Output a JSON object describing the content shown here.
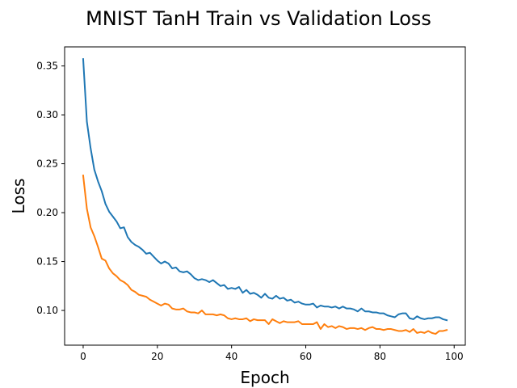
{
  "chart_data": {
    "type": "line",
    "title": "MNIST TanH Train vs Validation Loss",
    "xlabel": "Epoch",
    "ylabel": "Loss",
    "xlim": [
      -5,
      103
    ],
    "ylim": [
      0.0645,
      0.3695
    ],
    "xticks": [
      0,
      20,
      40,
      60,
      80,
      100
    ],
    "yticks": [
      0.1,
      0.15,
      0.2,
      0.25,
      0.3,
      0.35
    ],
    "ytick_labels": [
      "0.10",
      "0.15",
      "0.20",
      "0.25",
      "0.30",
      "0.35"
    ],
    "grid": false,
    "legend": null,
    "series": [
      {
        "color": "#1f77b4",
        "x": [
          0,
          1,
          2,
          3,
          4,
          5,
          6,
          7,
          8,
          9,
          10,
          11,
          12,
          13,
          14,
          15,
          16,
          17,
          18,
          19,
          20,
          21,
          22,
          23,
          24,
          25,
          26,
          27,
          28,
          29,
          30,
          31,
          32,
          33,
          34,
          35,
          36,
          37,
          38,
          39,
          40,
          41,
          42,
          43,
          44,
          45,
          46,
          47,
          48,
          49,
          50,
          51,
          52,
          53,
          54,
          55,
          56,
          57,
          58,
          59,
          60,
          61,
          62,
          63,
          64,
          65,
          66,
          67,
          68,
          69,
          70,
          71,
          72,
          73,
          74,
          75,
          76,
          77,
          78,
          79,
          80,
          81,
          82,
          83,
          84,
          85,
          86,
          87,
          88,
          89,
          90,
          91,
          92,
          93,
          94,
          95,
          96,
          97,
          98
        ],
        "y": [
          0.357,
          0.293,
          0.266,
          0.244,
          0.232,
          0.222,
          0.209,
          0.201,
          0.196,
          0.191,
          0.184,
          0.185,
          0.175,
          0.17,
          0.167,
          0.165,
          0.162,
          0.158,
          0.159,
          0.155,
          0.151,
          0.148,
          0.15,
          0.148,
          0.143,
          0.144,
          0.14,
          0.139,
          0.14,
          0.137,
          0.133,
          0.131,
          0.132,
          0.131,
          0.129,
          0.131,
          0.128,
          0.125,
          0.126,
          0.122,
          0.123,
          0.122,
          0.124,
          0.118,
          0.121,
          0.117,
          0.118,
          0.116,
          0.113,
          0.117,
          0.113,
          0.112,
          0.115,
          0.112,
          0.113,
          0.11,
          0.111,
          0.108,
          0.109,
          0.107,
          0.106,
          0.106,
          0.107,
          0.103,
          0.105,
          0.104,
          0.104,
          0.103,
          0.104,
          0.102,
          0.104,
          0.102,
          0.102,
          0.101,
          0.099,
          0.102,
          0.099,
          0.099,
          0.098,
          0.098,
          0.097,
          0.097,
          0.095,
          0.094,
          0.093,
          0.096,
          0.097,
          0.097,
          0.092,
          0.091,
          0.094,
          0.092,
          0.091,
          0.092,
          0.092,
          0.093,
          0.093,
          0.091,
          0.09
        ]
      },
      {
        "color": "#ff7f0e",
        "x": [
          0,
          1,
          2,
          3,
          4,
          5,
          6,
          7,
          8,
          9,
          10,
          11,
          12,
          13,
          14,
          15,
          16,
          17,
          18,
          19,
          20,
          21,
          22,
          23,
          24,
          25,
          26,
          27,
          28,
          29,
          30,
          31,
          32,
          33,
          34,
          35,
          36,
          37,
          38,
          39,
          40,
          41,
          42,
          43,
          44,
          45,
          46,
          47,
          48,
          49,
          50,
          51,
          52,
          53,
          54,
          55,
          56,
          57,
          58,
          59,
          60,
          61,
          62,
          63,
          64,
          65,
          66,
          67,
          68,
          69,
          70,
          71,
          72,
          73,
          74,
          75,
          76,
          77,
          78,
          79,
          80,
          81,
          82,
          83,
          84,
          85,
          86,
          87,
          88,
          89,
          90,
          91,
          92,
          93,
          94,
          95,
          96,
          97,
          98
        ],
        "y": [
          0.238,
          0.204,
          0.185,
          0.176,
          0.165,
          0.153,
          0.151,
          0.143,
          0.138,
          0.135,
          0.131,
          0.129,
          0.126,
          0.121,
          0.119,
          0.116,
          0.115,
          0.114,
          0.111,
          0.109,
          0.107,
          0.105,
          0.107,
          0.106,
          0.102,
          0.101,
          0.101,
          0.102,
          0.099,
          0.098,
          0.098,
          0.097,
          0.1,
          0.096,
          0.096,
          0.096,
          0.095,
          0.096,
          0.095,
          0.092,
          0.091,
          0.092,
          0.091,
          0.091,
          0.092,
          0.089,
          0.091,
          0.09,
          0.09,
          0.09,
          0.086,
          0.091,
          0.089,
          0.087,
          0.089,
          0.088,
          0.088,
          0.088,
          0.089,
          0.086,
          0.086,
          0.086,
          0.086,
          0.088,
          0.081,
          0.086,
          0.083,
          0.084,
          0.082,
          0.084,
          0.083,
          0.081,
          0.082,
          0.082,
          0.081,
          0.082,
          0.08,
          0.082,
          0.083,
          0.081,
          0.081,
          0.08,
          0.081,
          0.081,
          0.08,
          0.079,
          0.079,
          0.08,
          0.078,
          0.081,
          0.077,
          0.078,
          0.077,
          0.079,
          0.077,
          0.076,
          0.079,
          0.079,
          0.08
        ]
      }
    ]
  }
}
